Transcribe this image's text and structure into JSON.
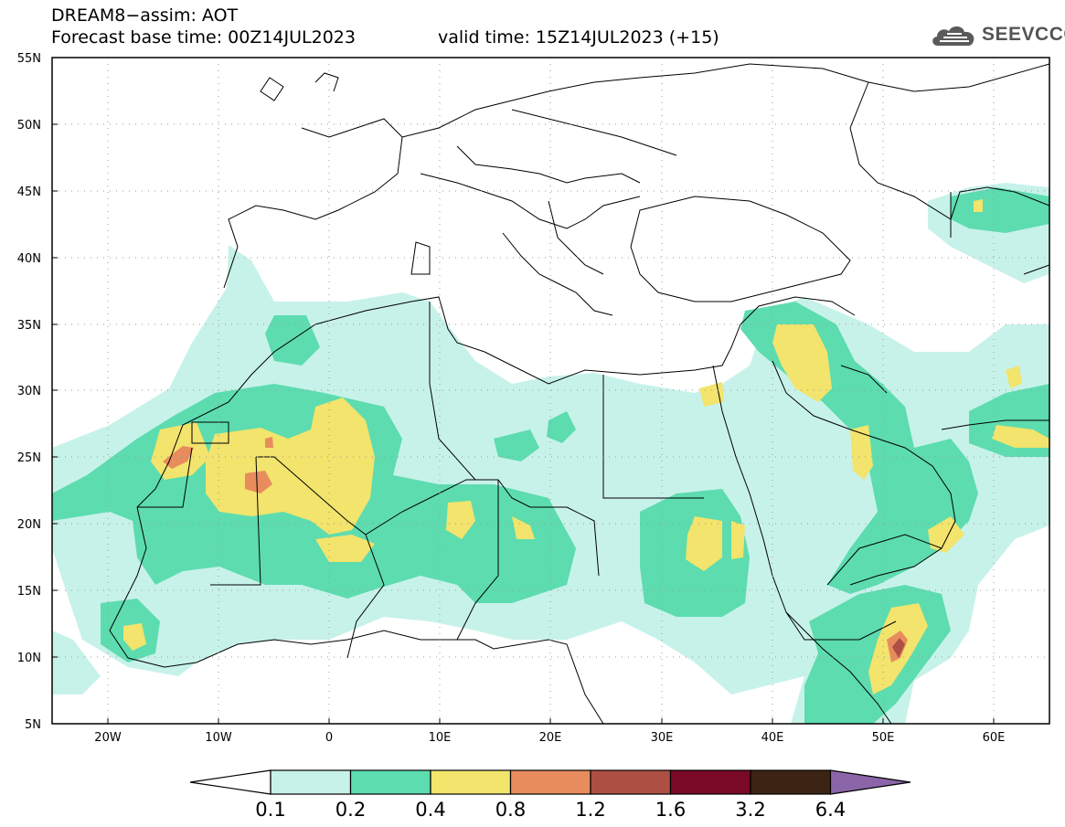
{
  "header": {
    "line1": "DREAM8−assim: AOT",
    "base_time": "Forecast base time: 00Z14JUL2023",
    "valid_time": "valid time: 15Z14JUL2023 (+15)"
  },
  "logo": {
    "text": "SEEVCCC",
    "color": "#555555"
  },
  "axes": {
    "lat_labels": [
      "55N",
      "50N",
      "45N",
      "40N",
      "35N",
      "30N",
      "25N",
      "20N",
      "15N",
      "10N",
      "5N"
    ],
    "lon_labels": [
      "20W",
      "10W",
      "0",
      "10E",
      "20E",
      "30E",
      "40E",
      "50E",
      "60E"
    ]
  },
  "colorbar": {
    "labels": [
      "0.1",
      "0.2",
      "0.4",
      "0.8",
      "1.2",
      "1.6",
      "3.2",
      "6.4"
    ],
    "colors": [
      "#ffffff",
      "#c7f2ea",
      "#5ddcaf",
      "#f2e46c",
      "#e88c5e",
      "#ad4f43",
      "#7a0a28",
      "#3b2414",
      "#8a66a8"
    ]
  },
  "palette": {
    "level1": "#c7f2ea",
    "level2": "#5ddcaf",
    "level3": "#f2e46c",
    "level4": "#e88c5e",
    "level5": "#ad4f43",
    "border": "#000000",
    "grid": "#9a9a9a"
  }
}
